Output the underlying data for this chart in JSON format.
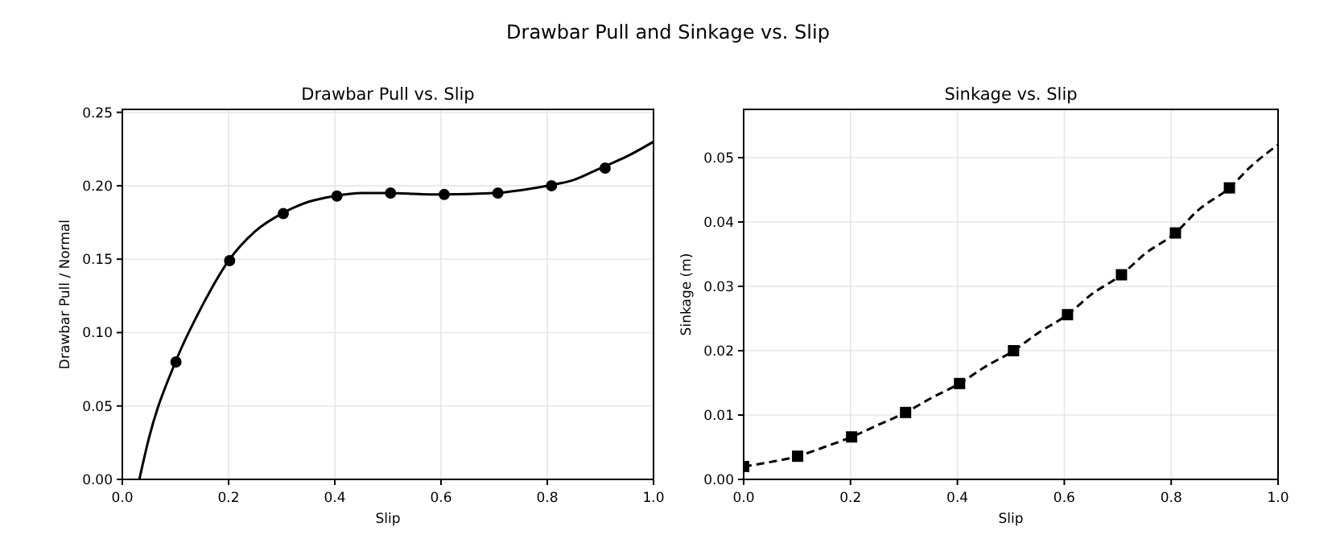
{
  "chart_data": [
    {
      "type": "line",
      "title": "Drawbar Pull vs. Slip",
      "xlabel": "Slip",
      "ylabel": "Drawbar Pull / Normal",
      "annotations": [
        "Drawbar Pull and Sinkage vs. Slip"
      ],
      "xlim": [
        0,
        1
      ],
      "ylim": [
        0,
        0.252
      ],
      "xticks": [
        {
          "value": 0,
          "label": "0.0"
        },
        {
          "value": 0.2,
          "label": "0.2"
        },
        {
          "value": 0.4,
          "label": "0.4"
        },
        {
          "value": 0.6,
          "label": "0.6"
        },
        {
          "value": 0.8,
          "label": "0.8"
        },
        {
          "value": 1,
          "label": "1.0"
        }
      ],
      "yticks": [
        {
          "value": 0,
          "label": "0.00"
        },
        {
          "value": 0.05,
          "label": "0.05"
        },
        {
          "value": 0.1,
          "label": "0.10"
        },
        {
          "value": 0.15,
          "label": "0.15"
        },
        {
          "value": 0.2,
          "label": "0.20"
        },
        {
          "value": 0.25,
          "label": "0.25"
        }
      ],
      "grid": true,
      "line_style": "solid",
      "series": [
        {
          "type": "line",
          "marker": "none",
          "color": "#000000",
          "x": [
            0.032,
            0.05,
            0.1,
            0.15,
            0.2,
            0.25,
            0.3,
            0.35,
            0.4,
            0.45,
            0.5,
            0.6,
            0.7,
            0.75,
            0.8,
            0.85,
            0.9,
            0.95,
            1.0
          ],
          "values": [
            0,
            0.028,
            0.08,
            0.118,
            0.149,
            0.169,
            0.181,
            0.189,
            0.193,
            0.195,
            0.195,
            0.194,
            0.195,
            0.197,
            0.2,
            0.204,
            0.212,
            0.22,
            0.23
          ]
        },
        {
          "type": "scatter",
          "marker": "circle",
          "color": "#000000",
          "x": [
            0.101,
            0.202,
            0.303,
            0.404,
            0.505,
            0.606,
            0.707,
            0.808,
            0.909
          ],
          "values": [
            0.08,
            0.149,
            0.181,
            0.193,
            0.195,
            0.194,
            0.195,
            0.2,
            0.212
          ]
        }
      ]
    },
    {
      "type": "line",
      "title": "Sinkage vs. Slip",
      "xlabel": "Slip",
      "ylabel": "Sinkage (m)",
      "xlim": [
        0,
        1
      ],
      "ylim": [
        0,
        0.0575
      ],
      "xticks": [
        {
          "value": 0,
          "label": "0.0"
        },
        {
          "value": 0.2,
          "label": "0.2"
        },
        {
          "value": 0.4,
          "label": "0.4"
        },
        {
          "value": 0.6,
          "label": "0.6"
        },
        {
          "value": 0.8,
          "label": "0.8"
        },
        {
          "value": 1,
          "label": "1.0"
        }
      ],
      "yticks": [
        {
          "value": 0,
          "label": "0.00"
        },
        {
          "value": 0.01,
          "label": "0.01"
        },
        {
          "value": 0.02,
          "label": "0.02"
        },
        {
          "value": 0.03,
          "label": "0.03"
        },
        {
          "value": 0.04,
          "label": "0.04"
        },
        {
          "value": 0.05,
          "label": "0.05"
        }
      ],
      "grid": true,
      "line_style": "dashed",
      "series": [
        {
          "type": "line",
          "marker": "none",
          "color": "#000000",
          "x": [
            0,
            0.05,
            0.101,
            0.15,
            0.202,
            0.25,
            0.303,
            0.35,
            0.404,
            0.45,
            0.505,
            0.55,
            0.606,
            0.65,
            0.707,
            0.75,
            0.808,
            0.85,
            0.909,
            0.95,
            1.0
          ],
          "values": [
            0.002,
            0.0027,
            0.0036,
            0.005,
            0.0066,
            0.0084,
            0.0104,
            0.0126,
            0.0149,
            0.0174,
            0.02,
            0.0227,
            0.0256,
            0.0287,
            0.0318,
            0.035,
            0.0383,
            0.0418,
            0.0453,
            0.0487,
            0.052
          ]
        },
        {
          "type": "scatter",
          "marker": "square",
          "color": "#000000",
          "x": [
            0,
            0.101,
            0.202,
            0.303,
            0.404,
            0.505,
            0.606,
            0.707,
            0.808,
            0.909
          ],
          "values": [
            0.002,
            0.0036,
            0.0066,
            0.0104,
            0.0149,
            0.02,
            0.0256,
            0.0318,
            0.0383,
            0.0453
          ]
        }
      ]
    }
  ]
}
